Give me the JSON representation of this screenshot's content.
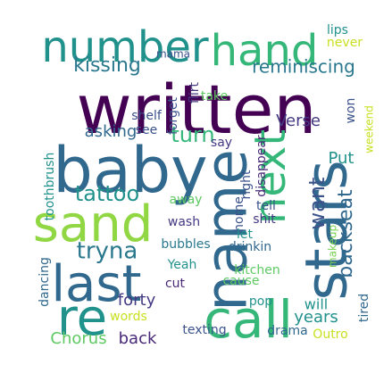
{
  "word_cloud": {
    "words": [
      {
        "text": "written",
        "color": "#440154"
      },
      {
        "text": "baby",
        "color": "#31688e"
      },
      {
        "text": "number",
        "color": "#21918c"
      },
      {
        "text": "hand",
        "color": "#35b779"
      },
      {
        "text": "stars",
        "color": "#31688e"
      },
      {
        "text": "name",
        "color": "#31688e"
      },
      {
        "text": "call",
        "color": "#35b779"
      },
      {
        "text": "sand",
        "color": "#90d743"
      },
      {
        "text": "last",
        "color": "#31688e"
      },
      {
        "text": "re",
        "color": "#21918c"
      },
      {
        "text": "next",
        "color": "#35b779"
      },
      {
        "text": "kissing",
        "color": "#2a788e"
      },
      {
        "text": "reminiscing",
        "color": "#2a788e"
      },
      {
        "text": "tattoo",
        "color": "#21918c"
      },
      {
        "text": "tryna",
        "color": "#2a788e"
      },
      {
        "text": "turn",
        "color": "#35b779"
      },
      {
        "text": "want",
        "color": "#3b528b"
      },
      {
        "text": "backseat",
        "color": "#31688e"
      },
      {
        "text": "asking",
        "color": "#31688e"
      },
      {
        "text": "Verse",
        "color": "#443983"
      },
      {
        "text": "Put",
        "color": "#21918c"
      },
      {
        "text": "forty",
        "color": "#443983"
      },
      {
        "text": "back",
        "color": "#482878"
      },
      {
        "text": "Chorus",
        "color": "#5ec962"
      },
      {
        "text": "years",
        "color": "#21918c"
      },
      {
        "text": "will",
        "color": "#21918c"
      },
      {
        "text": "lips",
        "color": "#21918c"
      },
      {
        "text": "never",
        "color": "#c8e020"
      },
      {
        "text": "mama",
        "color": "#3b528b"
      },
      {
        "text": "flirt",
        "color": "#443983"
      },
      {
        "text": "forget",
        "color": "#3b528b"
      },
      {
        "text": "shelf",
        "color": "#3b528b"
      },
      {
        "text": "see",
        "color": "#3b528b"
      },
      {
        "text": "take",
        "color": "#5ec962"
      },
      {
        "text": "won",
        "color": "#3b528b"
      },
      {
        "text": "weekend",
        "color": "#c8e020"
      },
      {
        "text": "say",
        "color": "#443983"
      },
      {
        "text": "right",
        "color": "#3b528b"
      },
      {
        "text": "disappear",
        "color": "#482878"
      },
      {
        "text": "home",
        "color": "#3b528b"
      },
      {
        "text": "tell",
        "color": "#3b528b"
      },
      {
        "text": "toothbrush",
        "color": "#21918c"
      },
      {
        "text": "away",
        "color": "#5ec962"
      },
      {
        "text": "wash",
        "color": "#443983"
      },
      {
        "text": "shit",
        "color": "#443983"
      },
      {
        "text": "bubbles",
        "color": "#2a788e"
      },
      {
        "text": "let",
        "color": "#21918c"
      },
      {
        "text": "drinkin",
        "color": "#31688e"
      },
      {
        "text": "kitchen",
        "color": "#5ec962"
      },
      {
        "text": "makeup",
        "color": "#7ad151"
      },
      {
        "text": "Yeah",
        "color": "#21918c"
      },
      {
        "text": "cause",
        "color": "#5ec962"
      },
      {
        "text": "cut",
        "color": "#482878"
      },
      {
        "text": "pop",
        "color": "#21918c"
      },
      {
        "text": "dancing",
        "color": "#31688e"
      },
      {
        "text": "words",
        "color": "#c8e020"
      },
      {
        "text": "texting",
        "color": "#3b528b"
      },
      {
        "text": "drama",
        "color": "#31688e"
      },
      {
        "text": "Outro",
        "color": "#c8e020"
      },
      {
        "text": "tired",
        "color": "#31688e"
      }
    ]
  }
}
